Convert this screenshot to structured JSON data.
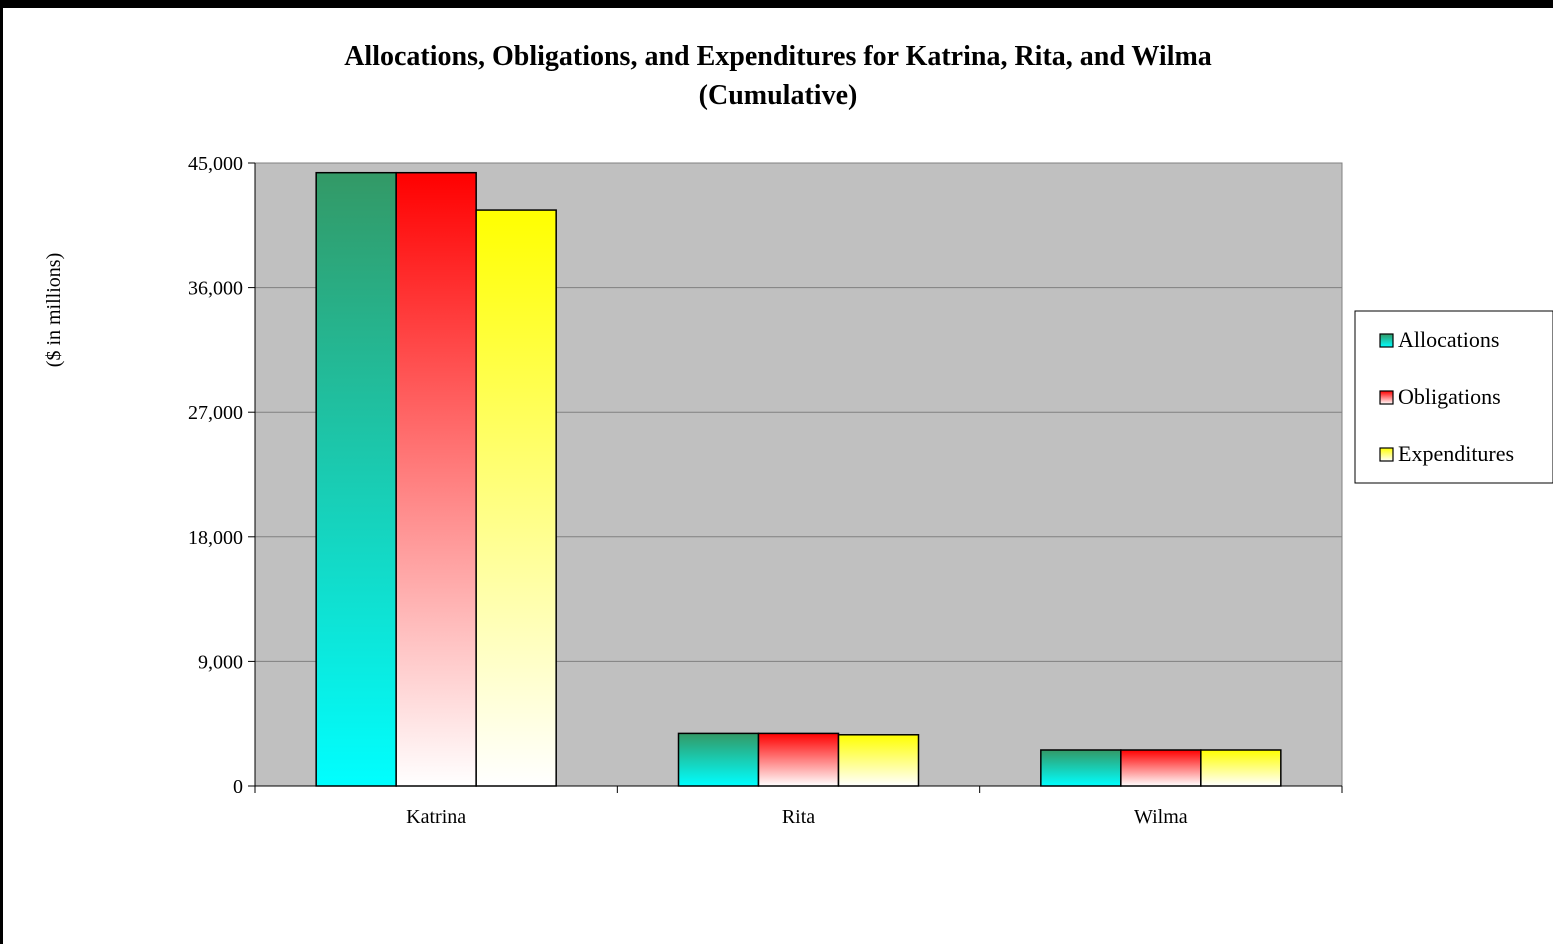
{
  "chart_data": {
    "type": "bar",
    "title": [
      "Allocations, Obligations, and Expenditures for Katrina, Rita, and Wilma",
      "(Cumulative)"
    ],
    "ylabel": "($ in millions)",
    "xlabel": "",
    "categories": [
      "Katrina",
      "Rita",
      "Wilma"
    ],
    "ylim": [
      0,
      45000
    ],
    "yticks": [
      "0",
      "9,000",
      "18,000",
      "27,000",
      "36,000",
      "45,000"
    ],
    "ytick_values": [
      0,
      9000,
      18000,
      27000,
      36000,
      45000
    ],
    "grid": true,
    "legend_position": "right",
    "plot_background": "#c0c0c0",
    "series": [
      {
        "name": "Allocations",
        "values": [
          44300,
          3800,
          2600
        ],
        "color_top": "#339966",
        "color_bottom": "#00ffff"
      },
      {
        "name": "Obligations",
        "values": [
          44300,
          3800,
          2600
        ],
        "color_top": "#ff0000",
        "color_bottom": "#ffffff"
      },
      {
        "name": "Expenditures",
        "values": [
          41600,
          3700,
          2600
        ],
        "color_top": "#ffff00",
        "color_bottom": "#ffffff"
      }
    ]
  }
}
